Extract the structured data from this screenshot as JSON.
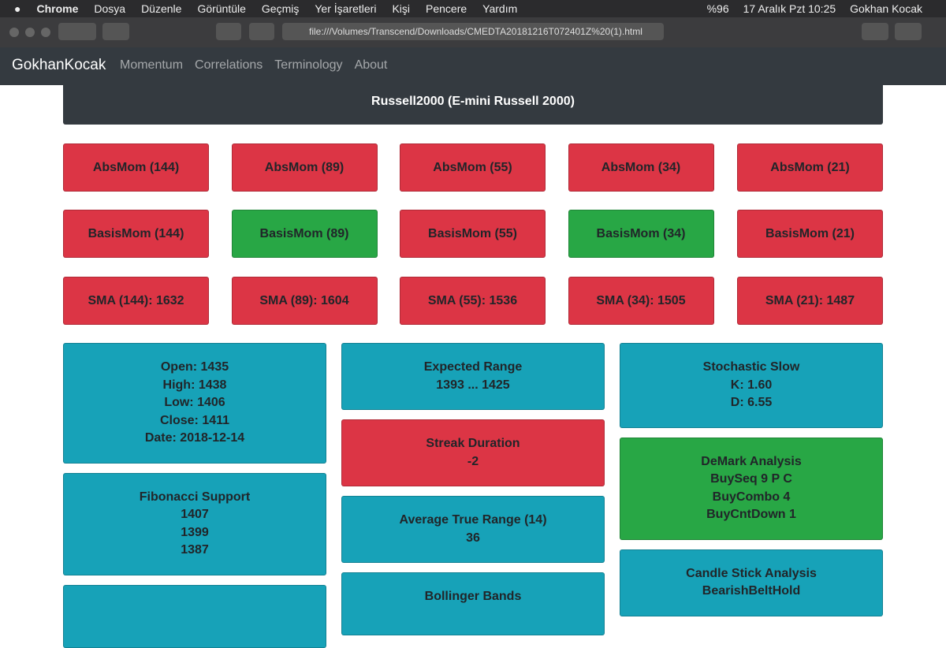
{
  "menubar": {
    "app": "Chrome",
    "menus": [
      "Dosya",
      "Düzenle",
      "Görüntüle",
      "Geçmiş",
      "Yer İşaretleri",
      "Kişi",
      "Pencere",
      "Yardım"
    ],
    "battery": "%96",
    "clock": "17 Aralık Pzt 10:25",
    "user": "Gokhan Kocak"
  },
  "browser": {
    "url": "file:///Volumes/Transcend/Downloads/CMEDTA20181216T072401Z%20(1).html"
  },
  "navbar": {
    "brand": "GokhanKocak",
    "links": [
      "Momentum",
      "Correlations",
      "Terminology",
      "About"
    ]
  },
  "header": {
    "title": "Russell2000 (E-mini Russell 2000)"
  },
  "tiles": [
    [
      {
        "text": "AbsMom (144)",
        "color": "#dc3545"
      },
      {
        "text": "AbsMom (89)",
        "color": "#dc3545"
      },
      {
        "text": "AbsMom (55)",
        "color": "#dc3545"
      },
      {
        "text": "AbsMom (34)",
        "color": "#dc3545"
      },
      {
        "text": "AbsMom (21)",
        "color": "#dc3545"
      }
    ],
    [
      {
        "text": "BasisMom (144)",
        "color": "#dc3545"
      },
      {
        "text": "BasisMom (89)",
        "color": "#28a745"
      },
      {
        "text": "BasisMom (55)",
        "color": "#dc3545"
      },
      {
        "text": "BasisMom (34)",
        "color": "#28a745"
      },
      {
        "text": "BasisMom (21)",
        "color": "#dc3545"
      }
    ],
    [
      {
        "text": "SMA (144): 1632",
        "color": "#dc3545"
      },
      {
        "text": "SMA (89): 1604",
        "color": "#dc3545"
      },
      {
        "text": "SMA (55): 1536",
        "color": "#dc3545"
      },
      {
        "text": "SMA (34): 1505",
        "color": "#dc3545"
      },
      {
        "text": "SMA (21): 1487",
        "color": "#dc3545"
      }
    ]
  ],
  "cards": [
    [
      {
        "lines": [
          "Open: 1435",
          "High: 1438",
          "Low: 1406",
          "Close: 1411",
          "Date: 2018-12-14"
        ],
        "color": "#17a2b8"
      },
      {
        "lines": [
          "Fibonacci Support",
          "1407",
          "1399",
          "1387"
        ],
        "color": "#17a2b8"
      },
      {
        "lines": [],
        "color": "#17a2b8"
      }
    ],
    [
      {
        "lines": [
          "Expected Range",
          "1393 ... 1425"
        ],
        "color": "#17a2b8"
      },
      {
        "lines": [
          "Streak Duration",
          "-2"
        ],
        "color": "#dc3545"
      },
      {
        "lines": [
          "Average True Range (14)",
          "36"
        ],
        "color": "#17a2b8"
      },
      {
        "lines": [
          "Bollinger Bands"
        ],
        "color": "#17a2b8"
      }
    ],
    [
      {
        "lines": [
          "Stochastic Slow",
          "K: 1.60",
          "D: 6.55"
        ],
        "color": "#17a2b8"
      },
      {
        "lines": [
          "DeMark Analysis",
          "BuySeq 9 P C",
          "BuyCombo 4",
          "BuyCntDown 1"
        ],
        "color": "#28a745"
      },
      {
        "lines": [
          "Candle Stick Analysis",
          "BearishBeltHold"
        ],
        "color": "#17a2b8"
      }
    ]
  ]
}
